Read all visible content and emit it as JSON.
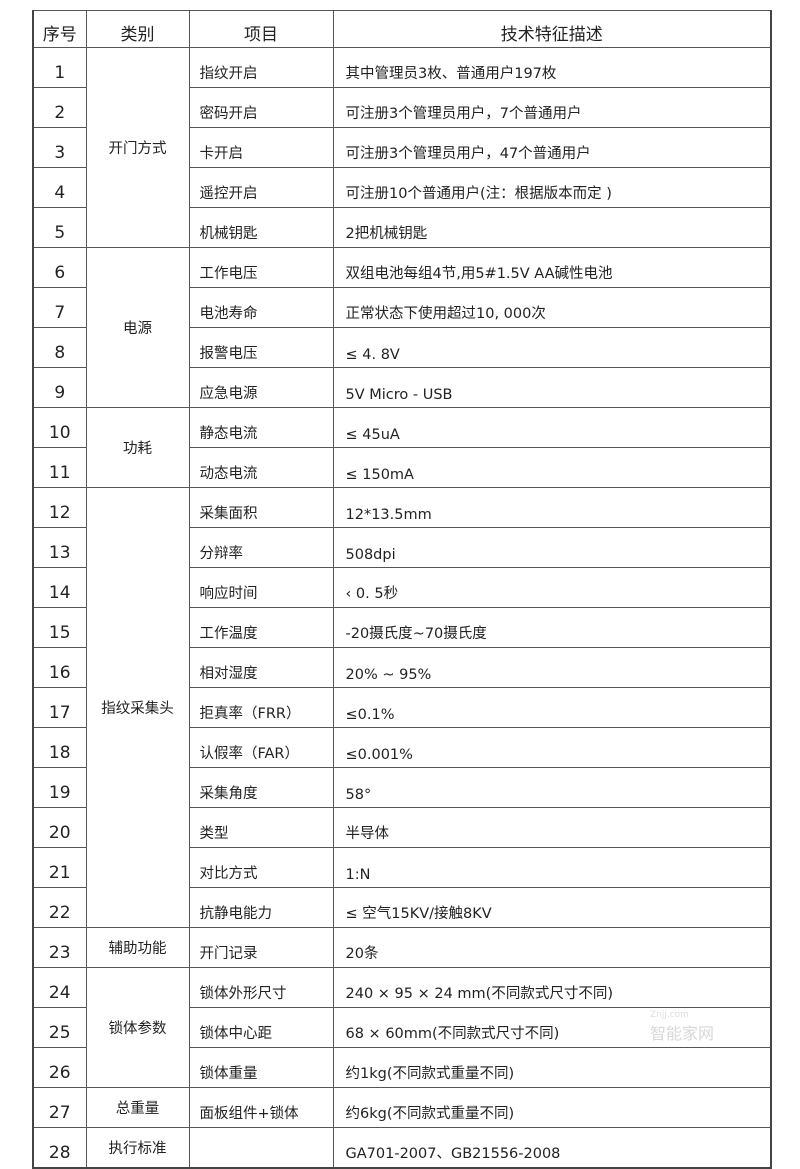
{
  "header": {
    "no": "序号",
    "category": "类别",
    "item": "项目",
    "description": "技术特征描述"
  },
  "groups": [
    {
      "category": "开门方式",
      "rows": [
        {
          "no": "1",
          "item": "指纹开启",
          "desc": "其中管理员3枚、普通用户197枚"
        },
        {
          "no": "2",
          "item": "密码开启",
          "desc": "可注册3个管理员用户，7个普通用户"
        },
        {
          "no": "3",
          "item": "卡开启",
          "desc": "可注册3个管理员用户，47个普通用户"
        },
        {
          "no": "4",
          "item": "遥控开启",
          "desc": "可注册10个普通用户(注：根据版本而定 )"
        },
        {
          "no": "5",
          "item": "机械钥匙",
          "desc": "2把机械钥匙"
        }
      ]
    },
    {
      "category": "电源",
      "rows": [
        {
          "no": "6",
          "item": "工作电压",
          "desc": "双组电池每组4节,用5#1.5V AA碱性电池"
        },
        {
          "no": "7",
          "item": "电池寿命",
          "desc": "正常状态下使用超过10, 000次"
        },
        {
          "no": "8",
          "item": "报警电压",
          "desc": "≤ 4. 8V"
        },
        {
          "no": "9",
          "item": "应急电源",
          "desc": "5V Micro - USB"
        }
      ]
    },
    {
      "category": "功耗",
      "rows": [
        {
          "no": "10",
          "item": "静态电流",
          "desc": "≤ 45uA"
        },
        {
          "no": "11",
          "item": "动态电流",
          "desc": "≤ 150mA"
        }
      ]
    },
    {
      "category": "指纹采集头",
      "rows": [
        {
          "no": "12",
          "item": "采集面积",
          "desc": "12*13.5mm"
        },
        {
          "no": "13",
          "item": "分辩率",
          "desc": "508dpi"
        },
        {
          "no": "14",
          "item": "响应时间",
          "desc": "‹ 0. 5秒"
        },
        {
          "no": "15",
          "item": "工作温度",
          "desc": "-20摄氏度~70摄氏度"
        },
        {
          "no": "16",
          "item": "相对湿度",
          "desc": "20% ~ 95%"
        },
        {
          "no": "17",
          "item": "拒真率（FRR）",
          "desc": "≤0.1%"
        },
        {
          "no": "18",
          "item": "认假率（FAR）",
          "desc": "≤0.001%"
        },
        {
          "no": "19",
          "item": "采集角度",
          "desc": "58°"
        },
        {
          "no": "20",
          "item": "类型",
          "desc": "半导体"
        },
        {
          "no": "21",
          "item": "对比方式",
          "desc": "1:N"
        },
        {
          "no": "22",
          "item": "抗静电能力",
          "desc": "≤ 空气15KV/接触8KV"
        }
      ]
    },
    {
      "category": "辅助功能",
      "rows": [
        {
          "no": "23",
          "item": "开门记录",
          "desc": "20条"
        }
      ]
    },
    {
      "category": "锁体参数",
      "rows": [
        {
          "no": "24",
          "item": "锁体外形尺寸",
          "desc": "240 × 95 × 24 mm(不同款式尺寸不同)"
        },
        {
          "no": "25",
          "item": "锁体中心距",
          "desc": "68 × 60mm(不同款式尺寸不同)"
        },
        {
          "no": "26",
          "item": "锁体重量",
          "desc": "约1kg(不同款式重量不同)"
        }
      ]
    },
    {
      "category": "总重量",
      "rows": [
        {
          "no": "27",
          "item": "面板组件+锁体",
          "desc": "约6kg(不同款式重量不同)"
        }
      ]
    },
    {
      "category": "执行标准",
      "rows": [
        {
          "no": "28",
          "item": "",
          "desc": "GA701-2007、GB21556-2008"
        }
      ]
    }
  ],
  "watermark": {
    "site": "Znjj.com",
    "name": "智能家网"
  }
}
